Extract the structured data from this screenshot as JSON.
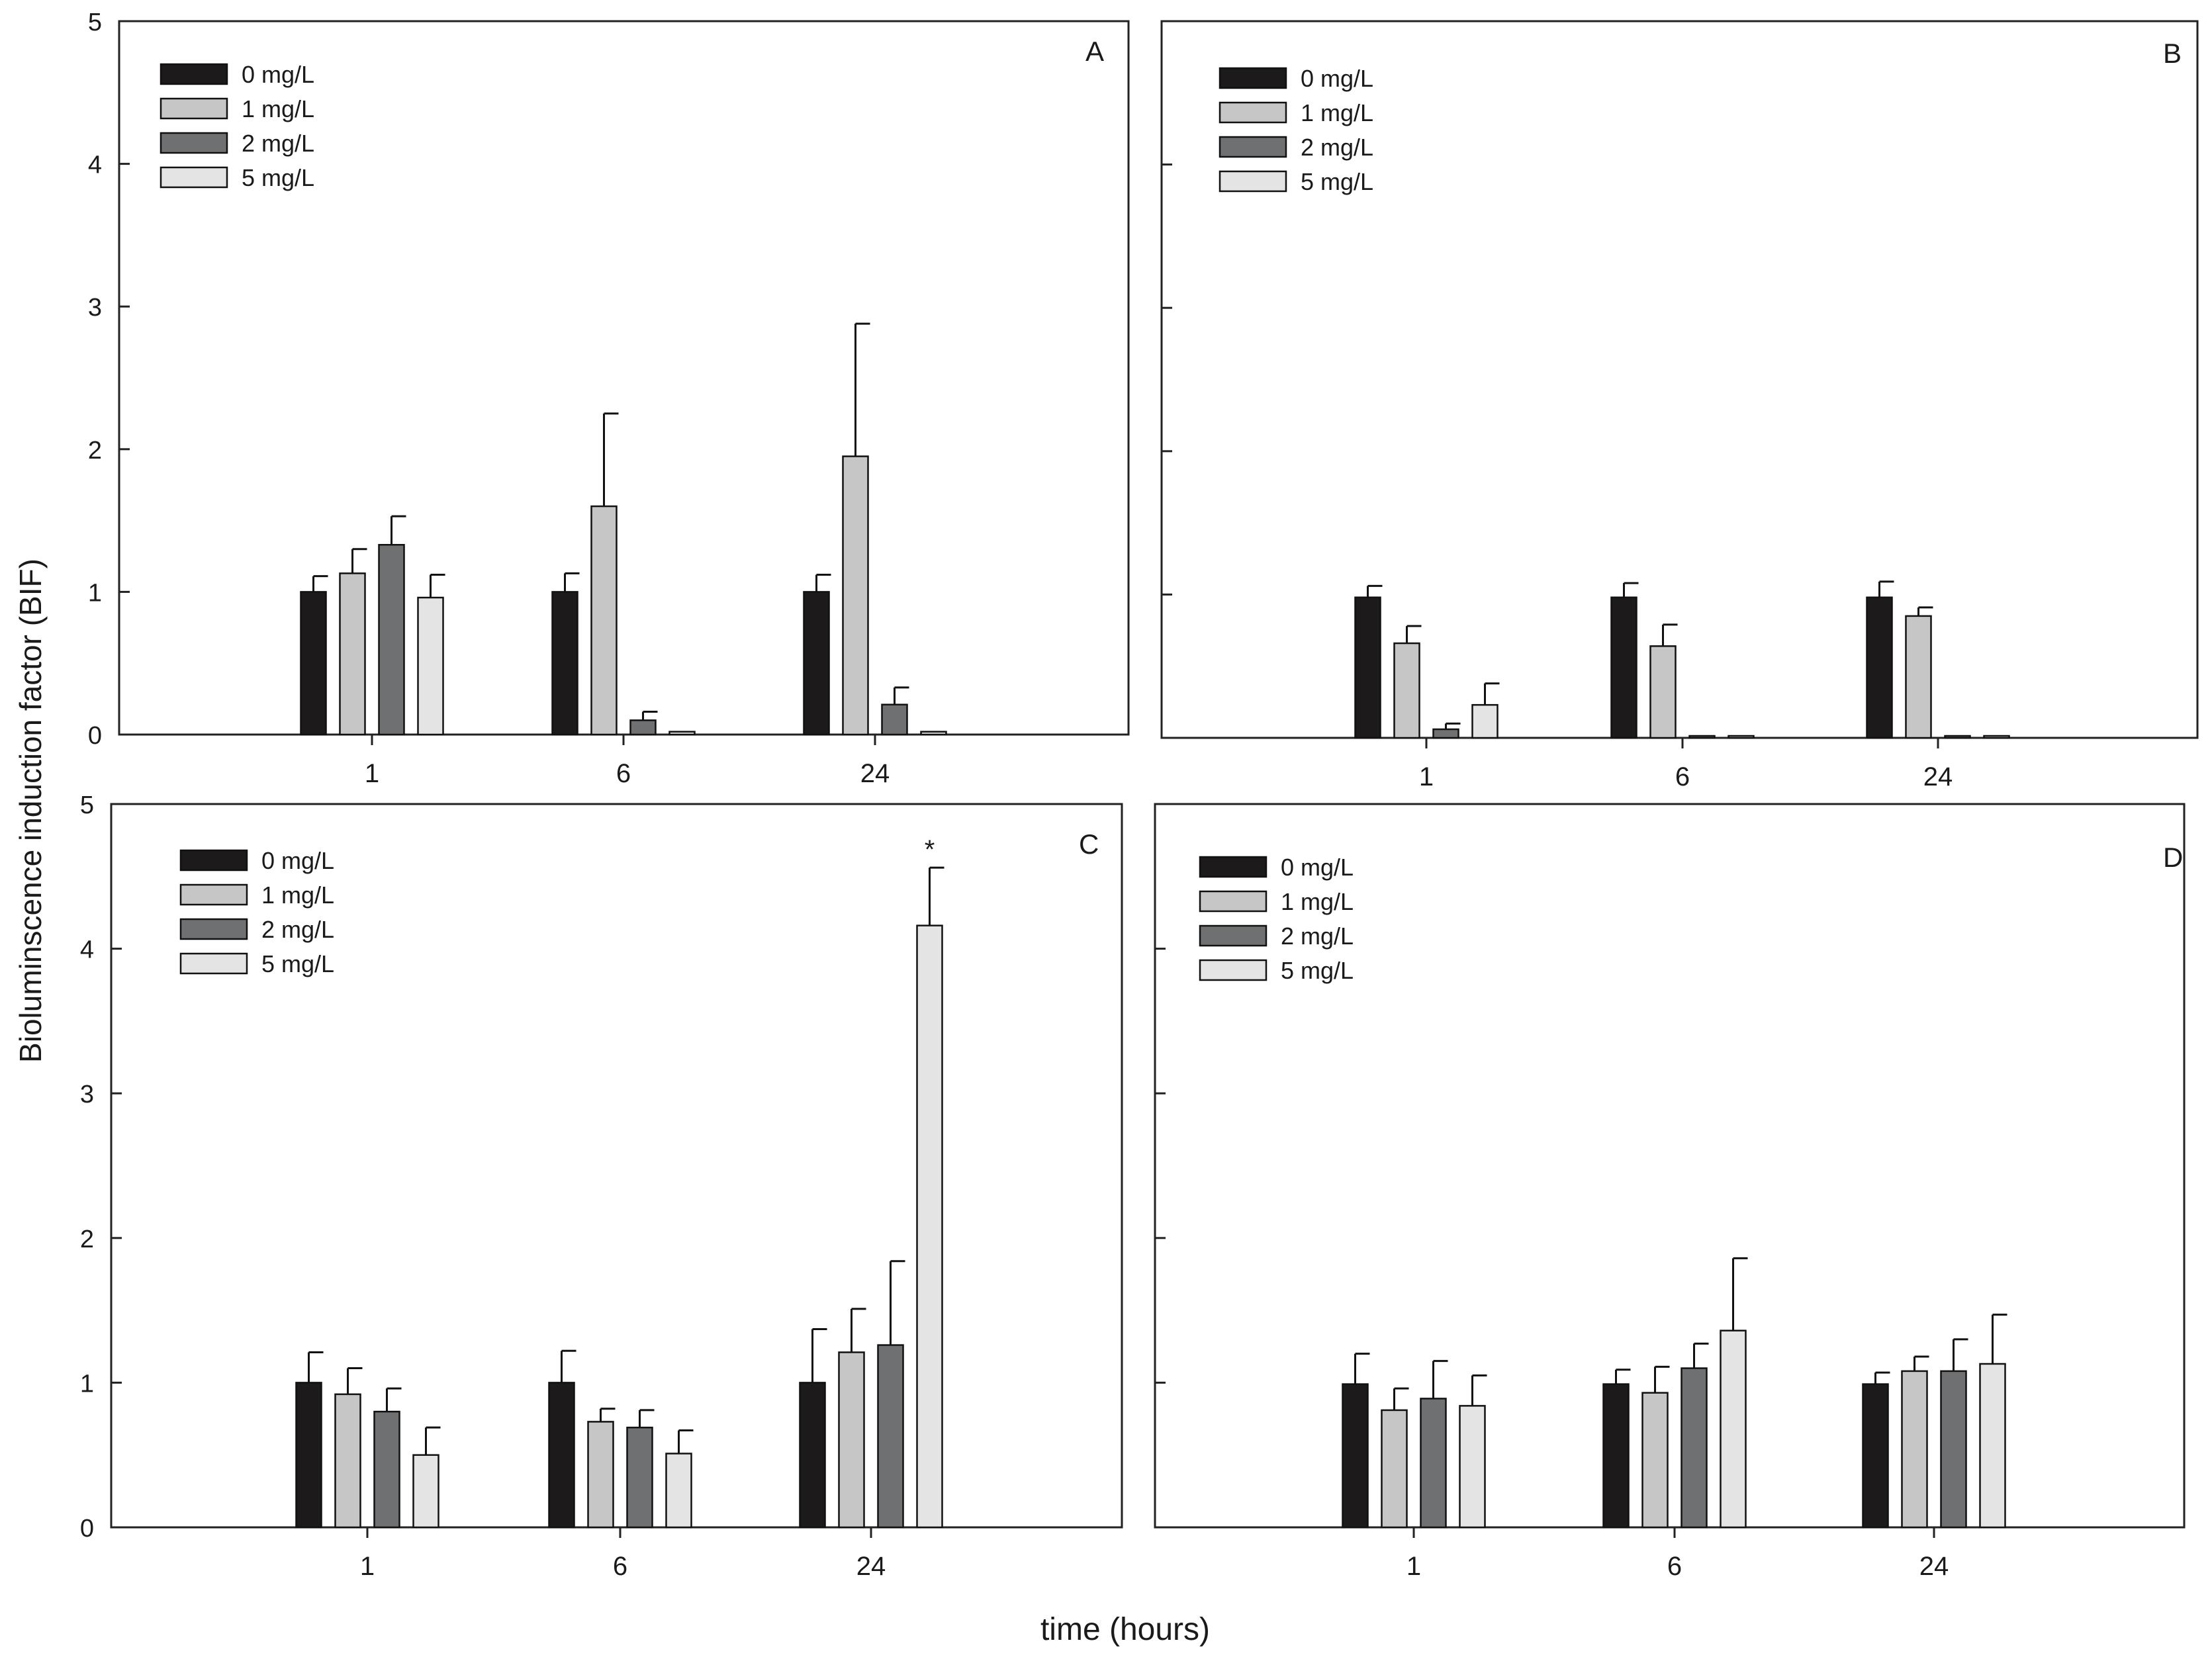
{
  "figure": {
    "ylabel": "Bioluminscence induction factor (BIF)",
    "xlabel": "time (hours)"
  },
  "colors": {
    "0 mg/L": "#1c1a1b",
    "1 mg/L": "#c6c6c6",
    "2 mg/L": "#6f7071",
    "5 mg/L": "#e4e4e4",
    "axis": "#222222"
  },
  "chart_data": [
    {
      "type": "bar",
      "panel_label": "A",
      "categories": [
        "1",
        "6",
        "24"
      ],
      "yticks": [
        "0",
        "1",
        "2",
        "3",
        "4",
        "5"
      ],
      "ylim": [
        0,
        5
      ],
      "legend": [
        "0 mg/L",
        "1 mg/L",
        "2 mg/L",
        "5 mg/L"
      ],
      "series": [
        {
          "name": "0 mg/L",
          "values": [
            1.0,
            1.0,
            1.0
          ],
          "errors": [
            0.11,
            0.13,
            0.12
          ]
        },
        {
          "name": "1 mg/L",
          "values": [
            1.13,
            1.6,
            1.95
          ],
          "errors": [
            0.17,
            0.65,
            0.93
          ]
        },
        {
          "name": "2 mg/L",
          "values": [
            1.33,
            0.1,
            0.21
          ],
          "errors": [
            0.2,
            0.06,
            0.12
          ]
        },
        {
          "name": "5 mg/L",
          "values": [
            0.96,
            0.02,
            0.02
          ],
          "errors": [
            0.16,
            0,
            0
          ]
        }
      ],
      "annotations": []
    },
    {
      "type": "bar",
      "panel_label": "B",
      "categories": [
        "1",
        "6",
        "24"
      ],
      "yticks": [],
      "ylim": [
        0,
        5
      ],
      "legend": [
        "0 mg/L",
        "1 mg/L",
        "2 mg/L",
        "5 mg/L"
      ],
      "series": [
        {
          "name": "0 mg/L",
          "values": [
            0.98,
            0.98,
            0.98
          ],
          "errors": [
            0.08,
            0.1,
            0.11
          ]
        },
        {
          "name": "1 mg/L",
          "values": [
            0.66,
            0.64,
            0.85
          ],
          "errors": [
            0.12,
            0.15,
            0.06
          ]
        },
        {
          "name": "2 mg/L",
          "values": [
            0.06,
            0.01,
            0.0
          ],
          "errors": [
            0.04,
            0,
            0
          ]
        },
        {
          "name": "5 mg/L",
          "values": [
            0.23,
            0.01,
            0.0
          ],
          "errors": [
            0.15,
            0,
            0
          ]
        }
      ],
      "annotations": []
    },
    {
      "type": "bar",
      "panel_label": "C",
      "categories": [
        "1",
        "6",
        "24"
      ],
      "yticks": [
        "0",
        "1",
        "2",
        "3",
        "4",
        "5"
      ],
      "ylim": [
        0,
        5
      ],
      "legend": [
        "0 mg/L",
        "1 mg/L",
        "2 mg/L",
        "5 mg/L"
      ],
      "series": [
        {
          "name": "0 mg/L",
          "values": [
            1.0,
            1.0,
            1.0
          ],
          "errors": [
            0.21,
            0.22,
            0.37
          ]
        },
        {
          "name": "1 mg/L",
          "values": [
            0.92,
            0.73,
            1.21
          ],
          "errors": [
            0.18,
            0.09,
            0.3
          ]
        },
        {
          "name": "2 mg/L",
          "values": [
            0.8,
            0.69,
            1.26
          ],
          "errors": [
            0.16,
            0.12,
            0.58
          ]
        },
        {
          "name": "5 mg/L",
          "values": [
            0.5,
            0.51,
            4.16
          ],
          "errors": [
            0.19,
            0.16,
            0.4
          ]
        }
      ],
      "annotations": [
        {
          "text": "*",
          "series": "5 mg/L",
          "category": "24"
        }
      ]
    },
    {
      "type": "bar",
      "panel_label": "D",
      "categories": [
        "1",
        "6",
        "24"
      ],
      "yticks": [],
      "ylim": [
        0,
        5
      ],
      "legend": [
        "0 mg/L",
        "1 mg/L",
        "2 mg/L",
        "5 mg/L"
      ],
      "series": [
        {
          "name": "0 mg/L",
          "values": [
            0.99,
            0.99,
            0.99
          ],
          "errors": [
            0.21,
            0.1,
            0.08
          ]
        },
        {
          "name": "1 mg/L",
          "values": [
            0.81,
            0.93,
            1.08
          ],
          "errors": [
            0.15,
            0.18,
            0.1
          ]
        },
        {
          "name": "2 mg/L",
          "values": [
            0.89,
            1.1,
            1.08
          ],
          "errors": [
            0.26,
            0.17,
            0.22
          ]
        },
        {
          "name": "5 mg/L",
          "values": [
            0.84,
            1.36,
            1.13
          ],
          "errors": [
            0.21,
            0.5,
            0.34
          ]
        }
      ],
      "annotations": []
    }
  ]
}
